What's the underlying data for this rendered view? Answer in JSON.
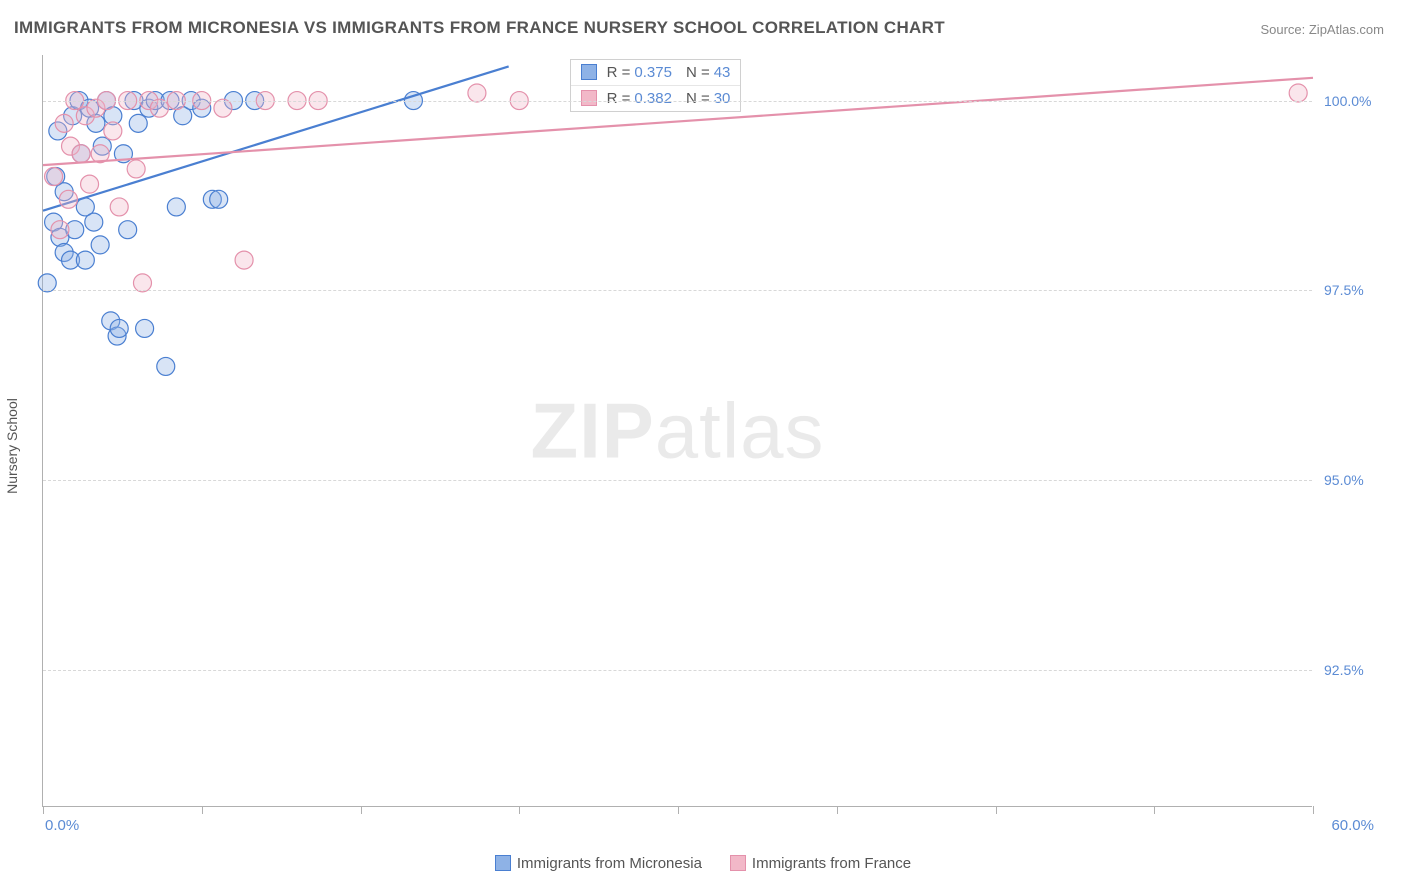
{
  "title": "IMMIGRANTS FROM MICRONESIA VS IMMIGRANTS FROM FRANCE NURSERY SCHOOL CORRELATION CHART",
  "source_prefix": "Source: ",
  "source": "ZipAtlas.com",
  "ylabel": "Nursery School",
  "watermark_bold": "ZIP",
  "watermark_light": "atlas",
  "chart": {
    "type": "scatter",
    "background_color": "#ffffff",
    "grid_color": "#d8d8d8",
    "axis_color": "#b0b0b0",
    "tick_label_color": "#5b8bd4",
    "label_fontsize": 14,
    "title_fontsize": 17,
    "xlim": [
      0.0,
      60.0
    ],
    "ylim": [
      90.7,
      100.6
    ],
    "ytick_values": [
      92.5,
      95.0,
      97.5,
      100.0
    ],
    "ytick_labels": [
      "92.5%",
      "95.0%",
      "97.5%",
      "100.0%"
    ],
    "xtick_values": [
      0,
      7.5,
      15,
      22.5,
      30,
      37.5,
      45,
      52.5,
      60
    ],
    "xtick_label_positions": [
      0,
      60
    ],
    "xtick_labels": [
      "0.0%",
      "60.0%"
    ],
    "point_radius": 9,
    "point_stroke_width": 1.2,
    "point_fill_opacity": 0.35,
    "trend_line_width": 2.2
  },
  "series": [
    {
      "name": "Immigrants from Micronesia",
      "stroke": "#4a7fd1",
      "fill": "#8eb2e6",
      "R": "0.375",
      "N": "43",
      "trend": {
        "x1": 0,
        "y1": 98.55,
        "x2": 22.0,
        "y2": 100.45
      },
      "points": [
        [
          0.2,
          97.6
        ],
        [
          0.5,
          98.4
        ],
        [
          0.6,
          99.0
        ],
        [
          0.7,
          99.6
        ],
        [
          0.8,
          98.2
        ],
        [
          1.0,
          98.8
        ],
        [
          1.0,
          98.0
        ],
        [
          1.3,
          97.9
        ],
        [
          1.4,
          99.8
        ],
        [
          1.5,
          98.3
        ],
        [
          1.7,
          100.0
        ],
        [
          1.8,
          99.3
        ],
        [
          2.0,
          98.6
        ],
        [
          2.0,
          97.9
        ],
        [
          2.2,
          99.9
        ],
        [
          2.4,
          98.4
        ],
        [
          2.5,
          99.7
        ],
        [
          2.7,
          98.1
        ],
        [
          2.8,
          99.4
        ],
        [
          3.0,
          100.0
        ],
        [
          3.2,
          97.1
        ],
        [
          3.3,
          99.8
        ],
        [
          3.5,
          96.9
        ],
        [
          3.6,
          97.0
        ],
        [
          3.8,
          99.3
        ],
        [
          4.0,
          98.3
        ],
        [
          4.3,
          100.0
        ],
        [
          4.5,
          99.7
        ],
        [
          4.8,
          97.0
        ],
        [
          5.0,
          99.9
        ],
        [
          5.3,
          100.0
        ],
        [
          5.8,
          96.5
        ],
        [
          6.0,
          100.0
        ],
        [
          6.3,
          98.6
        ],
        [
          6.6,
          99.8
        ],
        [
          7.0,
          100.0
        ],
        [
          7.5,
          99.9
        ],
        [
          8.0,
          98.7
        ],
        [
          8.3,
          98.7
        ],
        [
          9.0,
          100.0
        ],
        [
          10.0,
          100.0
        ],
        [
          17.5,
          100.0
        ],
        [
          29.0,
          100.0
        ]
      ]
    },
    {
      "name": "Immigrants from France",
      "stroke": "#e491ab",
      "fill": "#f2b8c8",
      "R": "0.382",
      "N": "30",
      "trend": {
        "x1": 0,
        "y1": 99.15,
        "x2": 60.0,
        "y2": 100.3
      },
      "points": [
        [
          0.5,
          99.0
        ],
        [
          0.8,
          98.3
        ],
        [
          1.0,
          99.7
        ],
        [
          1.2,
          98.7
        ],
        [
          1.3,
          99.4
        ],
        [
          1.5,
          100.0
        ],
        [
          1.8,
          99.3
        ],
        [
          2.0,
          99.8
        ],
        [
          2.2,
          98.9
        ],
        [
          2.5,
          99.9
        ],
        [
          2.7,
          99.3
        ],
        [
          3.0,
          100.0
        ],
        [
          3.3,
          99.6
        ],
        [
          3.6,
          98.6
        ],
        [
          4.0,
          100.0
        ],
        [
          4.4,
          99.1
        ],
        [
          4.7,
          97.6
        ],
        [
          5.0,
          100.0
        ],
        [
          5.5,
          99.9
        ],
        [
          6.3,
          100.0
        ],
        [
          7.5,
          100.0
        ],
        [
          8.5,
          99.9
        ],
        [
          9.5,
          97.9
        ],
        [
          10.5,
          100.0
        ],
        [
          12.0,
          100.0
        ],
        [
          13.0,
          100.0
        ],
        [
          20.5,
          100.1
        ],
        [
          22.5,
          100.0
        ],
        [
          30.0,
          100.0
        ],
        [
          59.3,
          100.1
        ]
      ]
    }
  ],
  "legend": {
    "info_box": {
      "left_pct": 41.5,
      "top_pct": 0.5
    },
    "r_label": "R =",
    "n_label": "N ="
  }
}
